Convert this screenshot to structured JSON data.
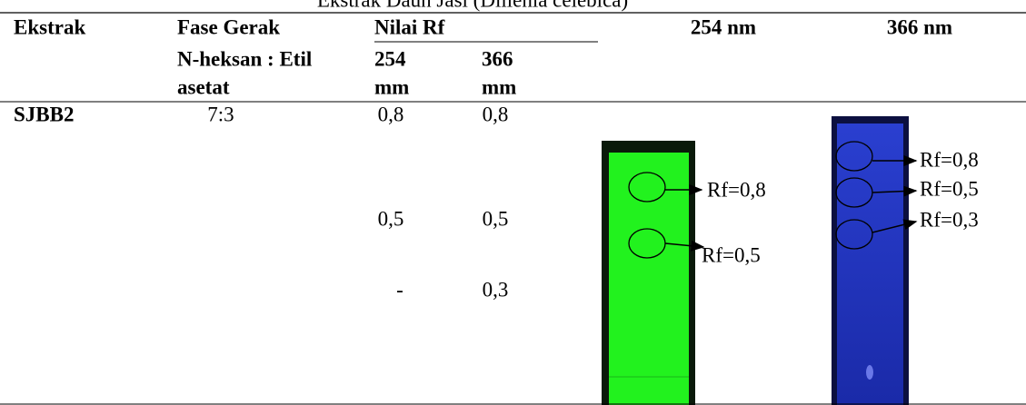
{
  "caption": "Ekstrak Daun Jasi (Dillenia celebica)",
  "table": {
    "header": {
      "ekstrak": "Ekstrak",
      "fase_gerak": "Fase Gerak",
      "fase_gerak_sub": [
        "N-heksan : Etil",
        "asetat"
      ],
      "nilai_rf": "Nilai Rf",
      "rf_254": [
        "254",
        "mm"
      ],
      "rf_366": [
        "366",
        "mm"
      ],
      "img_254": "254 nm",
      "img_366": "366 nm"
    },
    "row": {
      "ekstrak": "SJBB2",
      "fase_gerak": "7:3",
      "rf_254": [
        "0,8",
        "0,5",
        "-"
      ],
      "rf_366": [
        "0,8",
        "0,5",
        "0,3"
      ]
    }
  },
  "plates": {
    "green_labels": [
      "Rf=0,8",
      "Rf=0,5"
    ],
    "blue_labels": [
      "Rf=0,8",
      "Rf=0,5",
      "Rf=0,3"
    ]
  }
}
